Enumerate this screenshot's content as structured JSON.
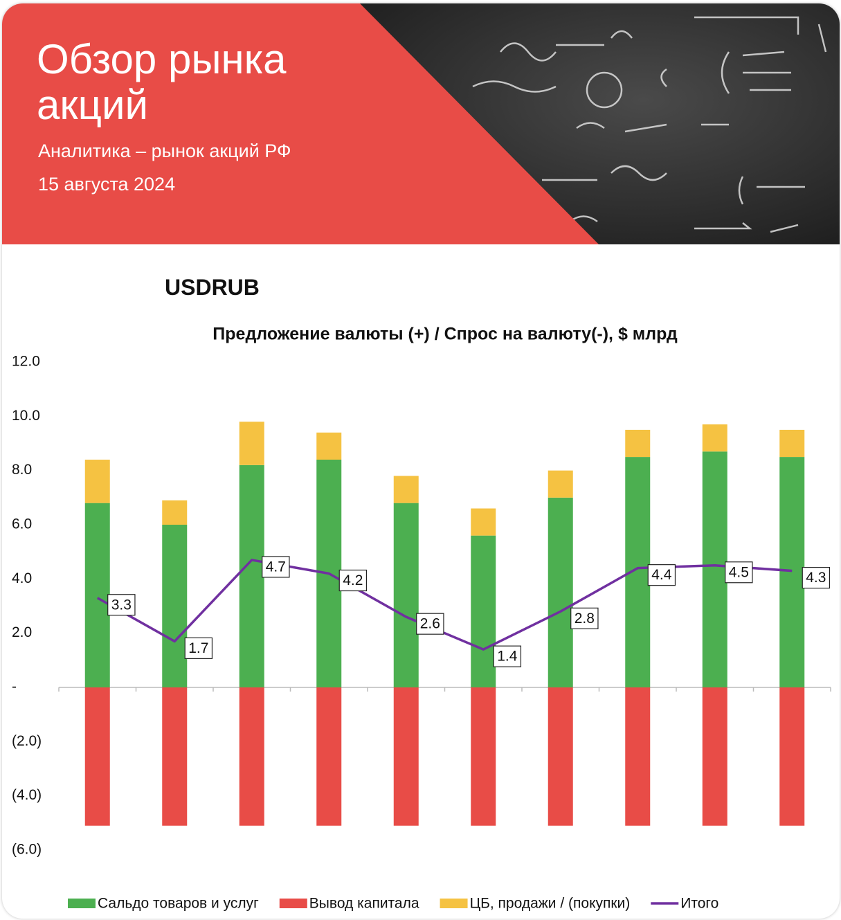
{
  "header": {
    "title": "Обзор рынка акций",
    "subtitle": "Аналитика – рынок акций РФ",
    "date": "15 августа 2024"
  },
  "section_title": "USDRUB",
  "chart_data": {
    "type": "bar",
    "title": "Предложение валюты (+) / Спрос на валюту(-), $ млрд",
    "categories": [
      null,
      null,
      null,
      null,
      null,
      null,
      null,
      null,
      null,
      null
    ],
    "series": [
      {
        "name": "Сальдо товаров и услуг",
        "type": "bar",
        "color": "#4caf50",
        "values": [
          6.8,
          6.0,
          8.2,
          8.4,
          6.8,
          5.6,
          7.0,
          8.5,
          8.7,
          8.5
        ]
      },
      {
        "name": "Вывод капитала",
        "type": "bar",
        "color": "#e84c47",
        "values": [
          -5.1,
          -5.1,
          -5.1,
          -5.1,
          -5.1,
          -5.1,
          -5.1,
          -5.1,
          -5.1,
          -5.1
        ]
      },
      {
        "name": "ЦБ, продажи / (покупки)",
        "type": "bar",
        "color": "#f5c242",
        "values": [
          1.6,
          0.9,
          1.6,
          1.0,
          1.0,
          1.0,
          1.0,
          1.0,
          1.0,
          1.0
        ]
      },
      {
        "name": "Итого",
        "type": "line",
        "color": "#7030a0",
        "values": [
          3.3,
          1.7,
          4.7,
          4.2,
          2.6,
          1.4,
          2.8,
          4.4,
          4.5,
          4.3
        ]
      }
    ],
    "ylim": [
      -6,
      12
    ],
    "yticks": [
      {
        "value": -6,
        "label": "(6.0)"
      },
      {
        "value": -4,
        "label": "(4.0)"
      },
      {
        "value": -2,
        "label": "(2.0)"
      },
      {
        "value": 0,
        "label": "-"
      },
      {
        "value": 2,
        "label": "2.0"
      },
      {
        "value": 4,
        "label": "4.0"
      },
      {
        "value": 6,
        "label": "6.0"
      },
      {
        "value": 8,
        "label": "8.0"
      },
      {
        "value": 10,
        "label": "10.0"
      },
      {
        "value": 12,
        "label": "12.0"
      }
    ],
    "legend": "bottom"
  }
}
